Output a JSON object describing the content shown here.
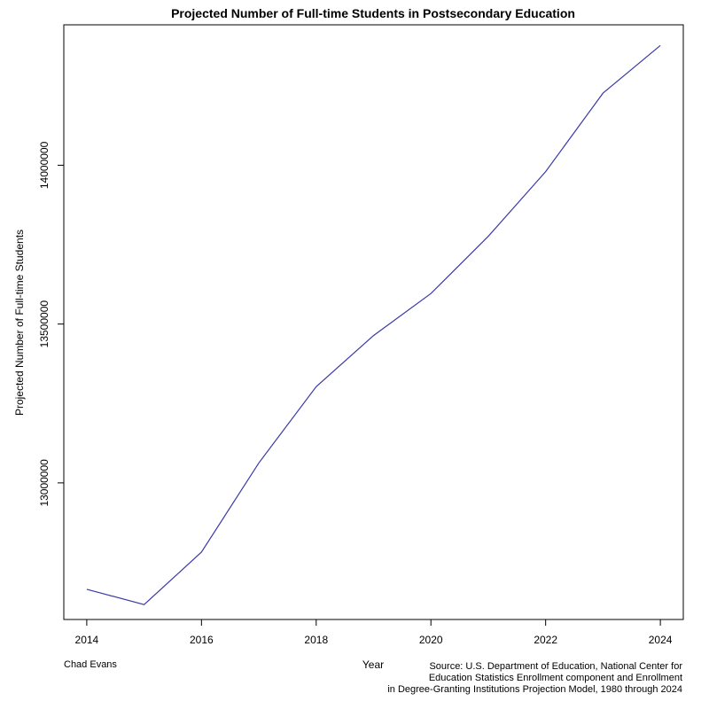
{
  "chart_data": {
    "type": "line",
    "title": "Projected Number of Full-time Students in Postsecondary Education",
    "xlabel": "Year",
    "ylabel": "Projected Number of Full-time Students",
    "x": [
      2014,
      2015,
      2016,
      2017,
      2018,
      2019,
      2020,
      2021,
      2022,
      2023,
      2024
    ],
    "series": [
      {
        "values": [
          12665000,
          12617000,
          12782000,
          13063000,
          13303000,
          13464000,
          13596000,
          13776000,
          13980000,
          14227000,
          14377000
        ],
        "color": "#3a3aa8"
      }
    ],
    "xticks": [
      "2014",
      "2016",
      "2018",
      "2020",
      "2022",
      "2024"
    ],
    "yticks": [
      "13000000",
      "13500000",
      "14000000"
    ],
    "xlim": [
      2013.6,
      2024.4
    ],
    "ylim": [
      12570000,
      14442000
    ],
    "grid": false,
    "legend": "none"
  },
  "footer": {
    "author": "Chad Evans",
    "source_lines": [
      "Source: U.S. Department of Education, National Center for",
      "Education Statistics Enrollment component and Enrollment",
      "in Degree-Granting Institutions Projection Model, 1980 through 2024"
    ]
  }
}
